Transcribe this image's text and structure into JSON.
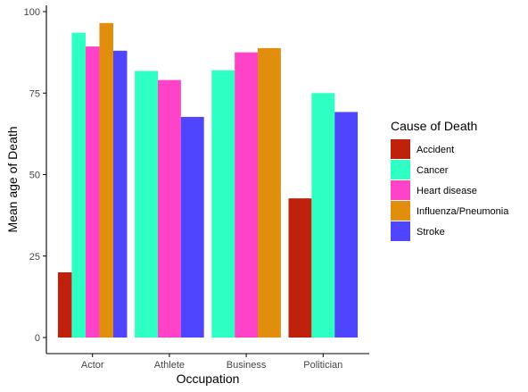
{
  "chart_data": {
    "type": "bar",
    "xlabel": "Occupation",
    "ylabel": "Mean age of Death",
    "ylim": [
      0,
      100
    ],
    "yticks": [
      0,
      25,
      50,
      75,
      100
    ],
    "categories": [
      "Actor",
      "Athlete",
      "Business",
      "Politician"
    ],
    "legend": {
      "title": "Cause of Death",
      "position": "right"
    },
    "grid": false,
    "series": [
      {
        "name": "Accident",
        "color": "#c0210d",
        "values": [
          20,
          null,
          null,
          42.7
        ]
      },
      {
        "name": "Cancer",
        "color": "#2effc3",
        "values": [
          93.5,
          81.8,
          82,
          75
        ]
      },
      {
        "name": "Heart disease",
        "color": "#ff43c8",
        "values": [
          89.3,
          79,
          87.5,
          null
        ]
      },
      {
        "name": "Influenza/Pneumonia",
        "color": "#e08e0b",
        "values": [
          96.5,
          null,
          88.8,
          null
        ]
      },
      {
        "name": "Stroke",
        "color": "#4f45ff",
        "values": [
          88,
          67.7,
          null,
          69.2
        ]
      }
    ]
  }
}
